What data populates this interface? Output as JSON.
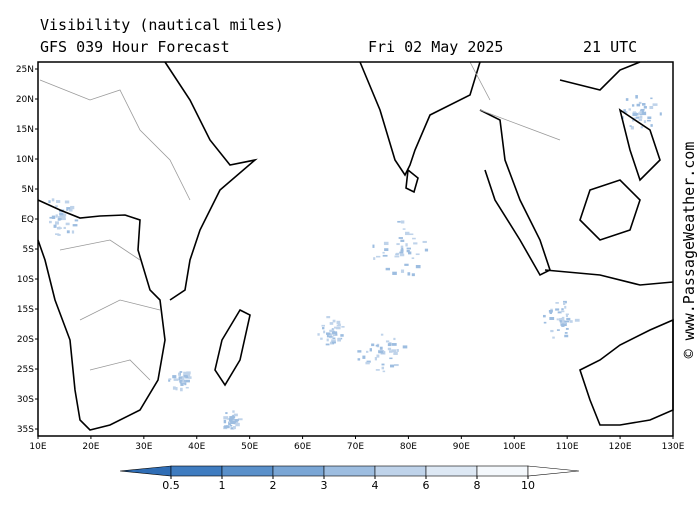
{
  "header": {
    "title": "Visibility (nautical miles)",
    "subtitle": "GFS 039 Hour Forecast",
    "date": "Fri 02 May 2025",
    "time": "21 UTC"
  },
  "map": {
    "lat_labels": [
      "25N",
      "20N",
      "15N",
      "10N",
      "5N",
      "EQ",
      "5S",
      "10S",
      "15S",
      "20S",
      "25S",
      "30S",
      "35S"
    ],
    "lon_labels": [
      "10E",
      "20E",
      "30E",
      "40E",
      "50E",
      "60E",
      "70E",
      "80E",
      "90E",
      "100E",
      "110E",
      "120E",
      "130E"
    ]
  },
  "colorbar": {
    "ticks": [
      0.5,
      1,
      2,
      3,
      4,
      6,
      8,
      10
    ],
    "colors": [
      "#2f6db5",
      "#3f7cc0",
      "#5a90ca",
      "#7aa6d5",
      "#9dbde0",
      "#bfd3ea",
      "#dde8f4",
      "#f4f8fc",
      "#ffffff"
    ]
  },
  "credit": "© www.PassageWeather.com"
}
